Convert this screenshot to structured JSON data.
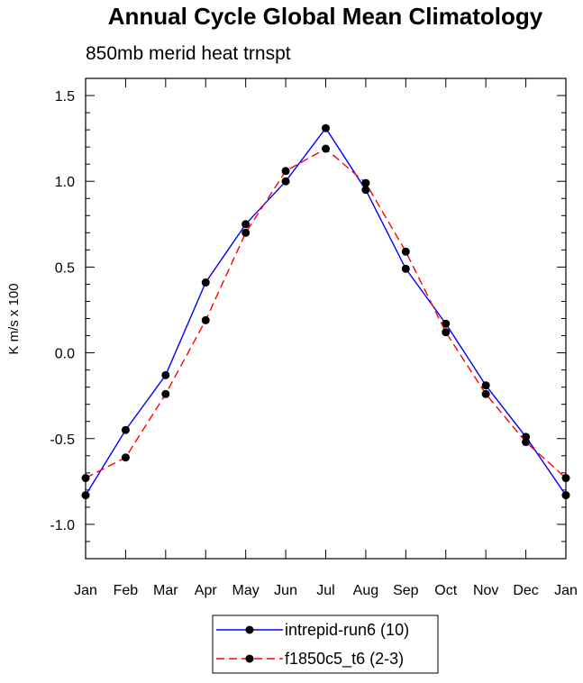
{
  "chart_data": {
    "type": "line",
    "title": "Annual Cycle Global Mean Climatology",
    "subtitle": "850mb merid heat trnspt",
    "xlabel": "",
    "ylabel": "K m/s x 100",
    "categories": [
      "Jan",
      "Feb",
      "Mar",
      "Apr",
      "May",
      "Jun",
      "Jul",
      "Aug",
      "Sep",
      "Oct",
      "Nov",
      "Dec",
      "Jan"
    ],
    "ylim": [
      -1.2,
      1.6
    ],
    "yticks": [
      -1.0,
      -0.5,
      0.0,
      0.5,
      1.0,
      1.5
    ],
    "ytick_labels": [
      "-1.0",
      "-0.5",
      "0.0",
      "0.5",
      "1.0",
      "1.5"
    ],
    "series": [
      {
        "name": "intrepid-run6 (10)",
        "color": "#0000ff",
        "dash": "solid",
        "values": [
          -0.83,
          -0.45,
          -0.13,
          0.41,
          0.75,
          1.0,
          1.31,
          0.95,
          0.49,
          0.17,
          -0.19,
          -0.49,
          -0.83
        ]
      },
      {
        "name": "f1850c5_t6 (2-3)",
        "color": "#ff0000",
        "dash": "dashed",
        "values": [
          -0.73,
          -0.61,
          -0.24,
          0.19,
          0.7,
          1.06,
          1.19,
          0.99,
          0.59,
          0.12,
          -0.24,
          -0.52,
          -0.73
        ]
      }
    ],
    "legend_position": "bottom-center",
    "grid": false
  }
}
